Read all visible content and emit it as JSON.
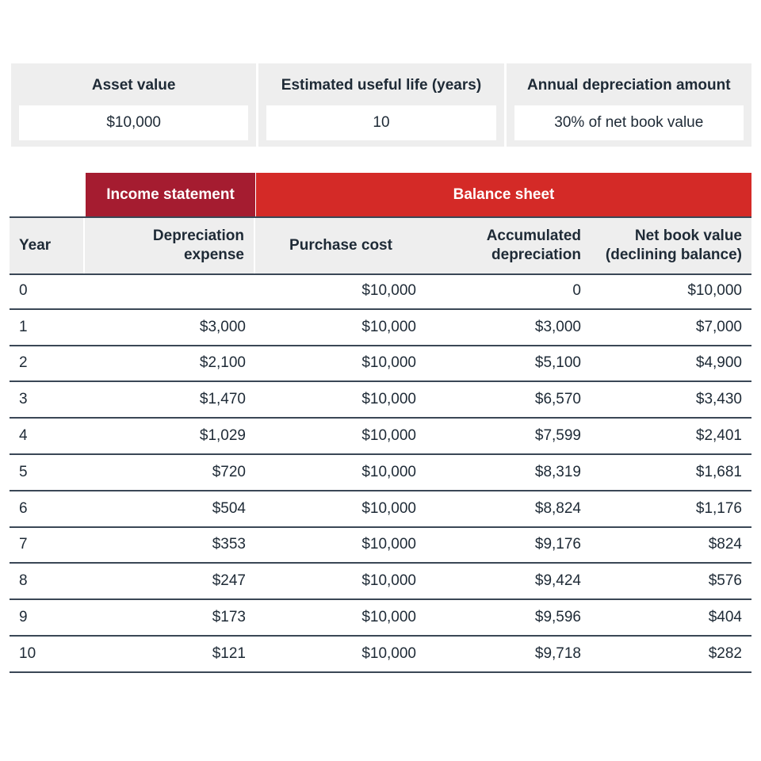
{
  "summary": [
    {
      "label": "Asset value",
      "value": "$10,000"
    },
    {
      "label": "Estimated useful life (years)",
      "value": "10"
    },
    {
      "label": "Annual depreciation amount",
      "value": "30% of net book value"
    }
  ],
  "table": {
    "groups": [
      "Income statement",
      "Balance sheet"
    ],
    "headers": [
      "Year",
      "Depreciation expense",
      "Purchase cost",
      "Accumulated depreciation",
      "Net book value (declining balance)"
    ],
    "rows": [
      [
        "0",
        null,
        "$10,000",
        "0",
        "$10,000"
      ],
      [
        "1",
        "$3,000",
        "$10,000",
        "$3,000",
        "$7,000"
      ],
      [
        "2",
        "$2,100",
        "$10,000",
        "$5,100",
        "$4,900"
      ],
      [
        "3",
        "$1,470",
        "$10,000",
        "$6,570",
        "$3,430"
      ],
      [
        "4",
        "$1,029",
        "$10,000",
        "$7,599",
        "$2,401"
      ],
      [
        "5",
        "$720",
        "$10,000",
        "$8,319",
        "$1,681"
      ],
      [
        "6",
        "$504",
        "$10,000",
        "$8,824",
        "$1,176"
      ],
      [
        "7",
        "$353",
        "$10,000",
        "$9,176",
        "$824"
      ],
      [
        "8",
        "$247",
        "$10,000",
        "$9,424",
        "$576"
      ],
      [
        "9",
        "$173",
        "$10,000",
        "$9,596",
        "$404"
      ],
      [
        "10",
        "$121",
        "$10,000",
        "$9,718",
        "$282"
      ]
    ]
  }
}
